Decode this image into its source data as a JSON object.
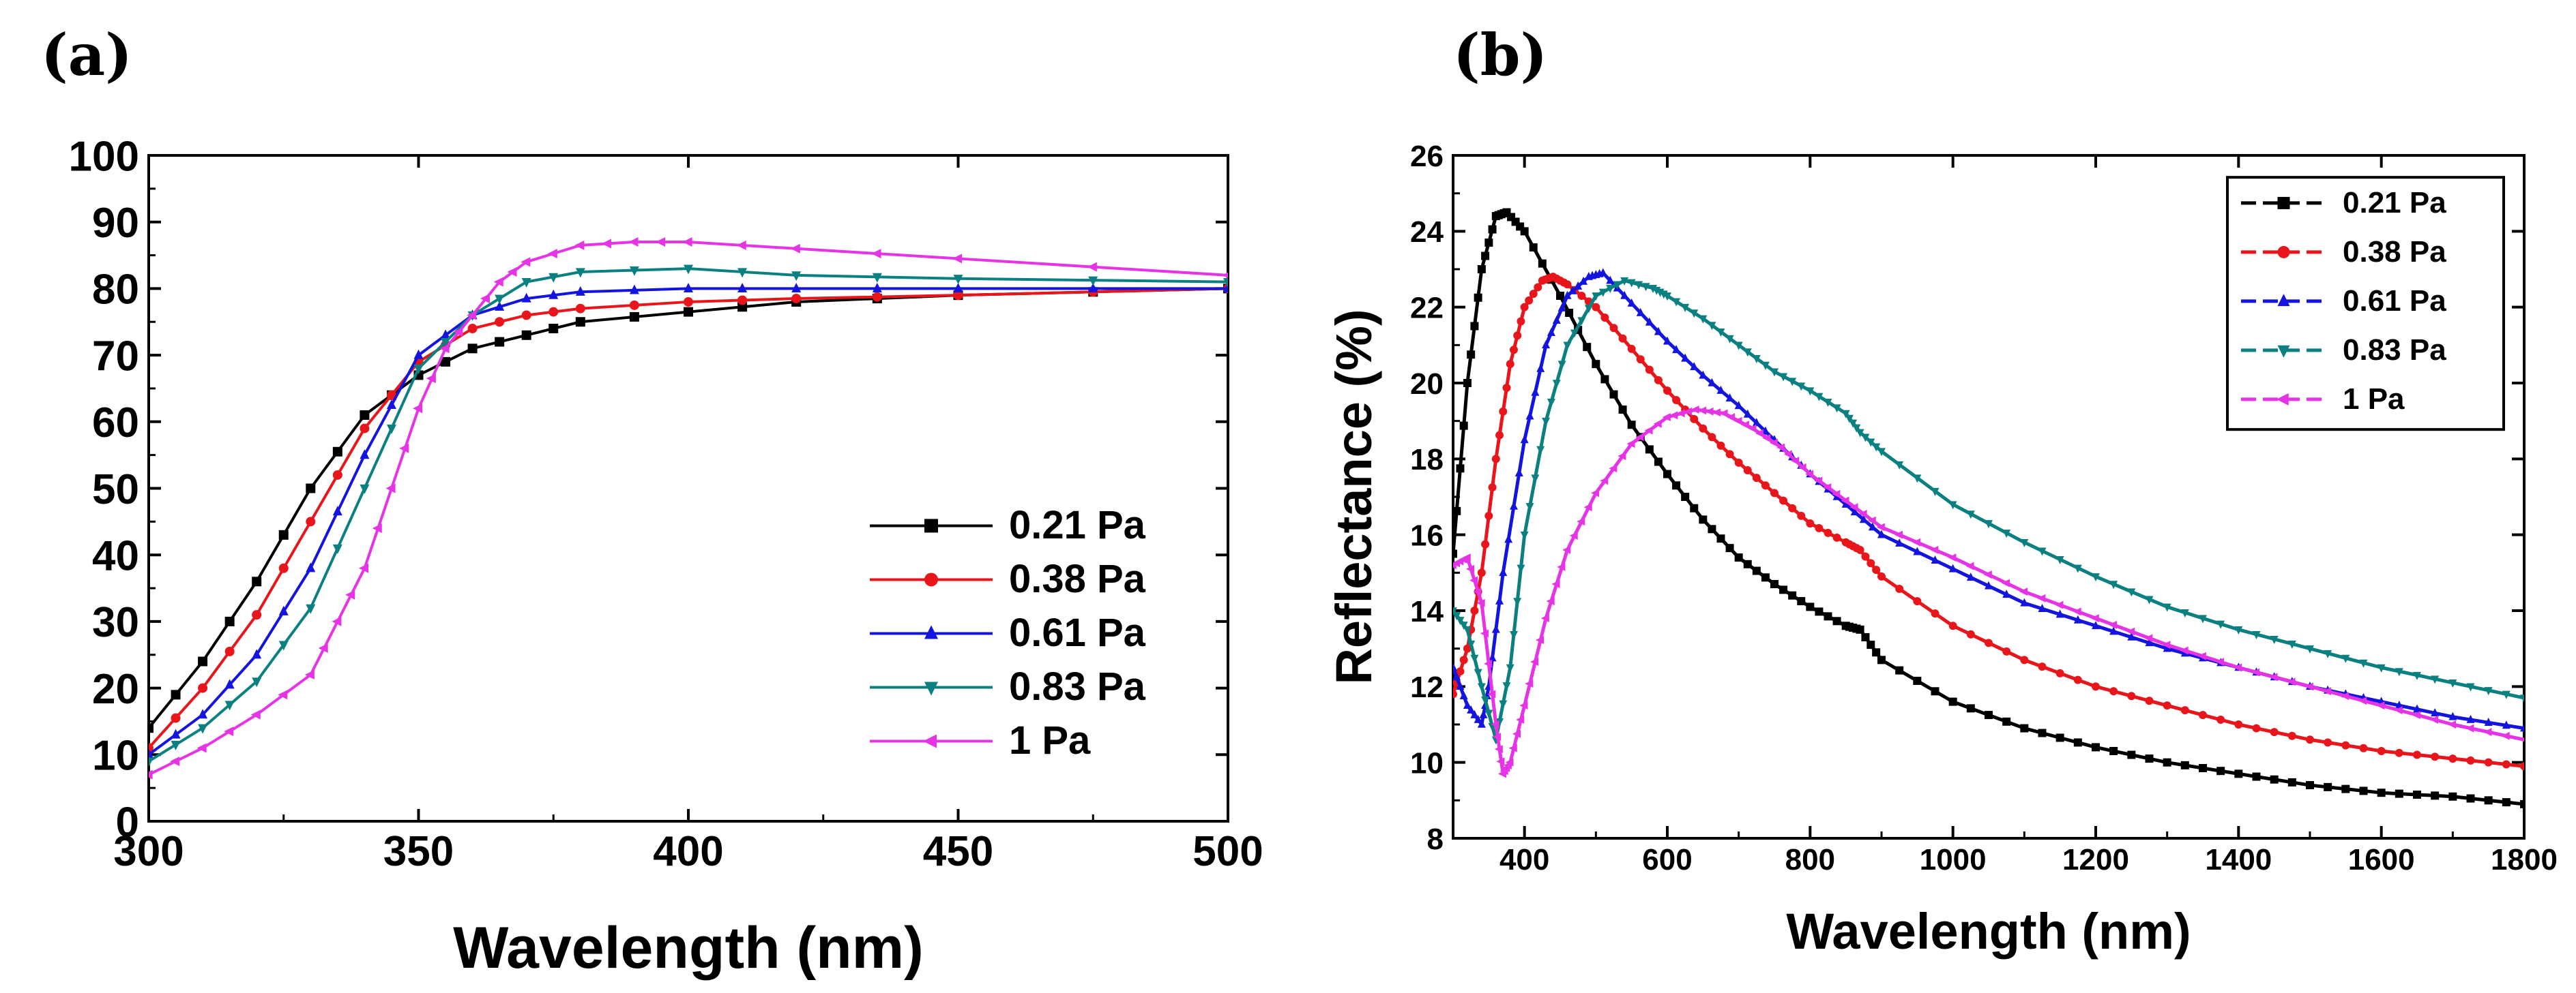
{
  "chart_data": [
    {
      "panel": "(a)",
      "type": "line",
      "title": "",
      "xlabel": "Wavelength (nm)",
      "ylabel": "",
      "xlim": [
        300,
        500
      ],
      "ylim": [
        0,
        100
      ],
      "xticks": [
        300,
        350,
        400,
        450,
        500
      ],
      "yticks": [
        0,
        10,
        20,
        30,
        40,
        50,
        60,
        70,
        80,
        90,
        100
      ],
      "legend_position": "lower-right",
      "series": [
        {
          "name": "0.21 Pa",
          "color": "#000000",
          "marker": "square",
          "x": [
            300,
            310,
            320,
            330,
            340,
            350,
            360,
            370,
            380,
            400,
            420,
            450,
            500
          ],
          "y": [
            14,
            24,
            36,
            50,
            61,
            67,
            71,
            73,
            75,
            76.5,
            78,
            79,
            80
          ]
        },
        {
          "name": "0.38 Pa",
          "color": "#e8161a",
          "marker": "circle",
          "x": [
            300,
            310,
            320,
            330,
            340,
            350,
            360,
            370,
            380,
            400,
            420,
            450,
            500
          ],
          "y": [
            11,
            20,
            31,
            45,
            59,
            69,
            74,
            76,
            77,
            78,
            78.5,
            79,
            80
          ]
        },
        {
          "name": "0.61 Pa",
          "color": "#1414e0",
          "marker": "triangle-up",
          "x": [
            300,
            310,
            320,
            330,
            340,
            350,
            360,
            370,
            380,
            400,
            420,
            450,
            500
          ],
          "y": [
            10,
            16,
            25,
            38,
            55,
            70,
            76,
            78.5,
            79.5,
            80,
            80,
            80,
            80
          ]
        },
        {
          "name": "0.83 Pa",
          "color": "#0a8080",
          "marker": "triangle-down",
          "x": [
            300,
            310,
            320,
            330,
            340,
            350,
            360,
            370,
            380,
            400,
            420,
            450,
            500
          ],
          "y": [
            9,
            14,
            21,
            32,
            50,
            68,
            76,
            81,
            82.5,
            83,
            82,
            81.5,
            81
          ]
        },
        {
          "name": "1      Pa",
          "color": "#e533e5",
          "marker": "triangle-left",
          "x": [
            300,
            310,
            320,
            330,
            335,
            340,
            345,
            350,
            355,
            360,
            365,
            370,
            380,
            390,
            400,
            420,
            450,
            500
          ],
          "y": [
            7,
            11,
            16,
            22,
            30,
            38,
            50,
            62,
            71,
            76,
            81,
            84,
            86.5,
            87,
            87,
            86,
            84.5,
            82
          ]
        }
      ]
    },
    {
      "panel": "(b)",
      "type": "line",
      "title": "",
      "xlabel": "Wavelength (nm)",
      "ylabel": "Reflectance (%)",
      "xlim": [
        300,
        1800
      ],
      "ylim": [
        8,
        26
      ],
      "xticks": [
        400,
        600,
        800,
        1000,
        1200,
        1400,
        1600,
        1800
      ],
      "yticks": [
        8,
        10,
        12,
        14,
        16,
        18,
        20,
        22,
        24,
        26
      ],
      "legend_position": "top-right",
      "series": [
        {
          "name": "0.21 Pa",
          "color": "#000000",
          "marker": "square",
          "x": [
            300,
            320,
            340,
            360,
            375,
            400,
            450,
            500,
            550,
            600,
            650,
            700,
            750,
            800,
            850,
            870,
            900,
            1000,
            1100,
            1200,
            1300,
            1400,
            1500,
            1600,
            1700,
            1800
          ],
          "y": [
            15.5,
            20,
            23,
            24.4,
            24.5,
            24,
            22.3,
            20.5,
            18.9,
            17.6,
            16.4,
            15.4,
            14.7,
            14.1,
            13.6,
            13.5,
            12.7,
            11.6,
            10.9,
            10.4,
            10,
            9.7,
            9.4,
            9.2,
            9.1,
            8.9
          ]
        },
        {
          "name": "0.38 Pa",
          "color": "#e8161a",
          "marker": "circle",
          "x": [
            300,
            320,
            340,
            360,
            380,
            400,
            425,
            440,
            460,
            500,
            550,
            600,
            650,
            700,
            750,
            800,
            850,
            870,
            900,
            1000,
            1100,
            1200,
            1300,
            1400,
            1500,
            1600,
            1700,
            1800
          ],
          "y": [
            11.8,
            13,
            15,
            18,
            20.5,
            22,
            22.7,
            22.8,
            22.6,
            22,
            20.9,
            19.8,
            18.8,
            17.9,
            17.1,
            16.3,
            15.8,
            15.6,
            14.9,
            13.6,
            12.7,
            12,
            11.5,
            11,
            10.6,
            10.3,
            10.1,
            9.9
          ]
        },
        {
          "name": "0.61 Pa",
          "color": "#1414e0",
          "marker": "triangle-up",
          "x": [
            300,
            320,
            340,
            350,
            370,
            400,
            430,
            460,
            490,
            510,
            550,
            600,
            650,
            700,
            750,
            800,
            850,
            900,
            1000,
            1100,
            1200,
            1300,
            1400,
            1500,
            1600,
            1700,
            1800
          ],
          "y": [
            12.5,
            11.5,
            11,
            12,
            15,
            18.5,
            21,
            22.3,
            22.8,
            22.9,
            22.1,
            21.1,
            20.2,
            19.4,
            18.5,
            17.6,
            16.8,
            16,
            15.1,
            14.2,
            13.6,
            13,
            12.5,
            12,
            11.6,
            11.2,
            10.9
          ]
        },
        {
          "name": "0.83 Pa",
          "color": "#0a8080",
          "marker": "triangle-down",
          "x": [
            300,
            320,
            340,
            360,
            380,
            400,
            430,
            460,
            500,
            540,
            580,
            600,
            650,
            700,
            750,
            800,
            850,
            870,
            900,
            1000,
            1100,
            1200,
            1300,
            1400,
            1500,
            1600,
            1700,
            1800
          ],
          "y": [
            14,
            13.5,
            12,
            10.6,
            12.5,
            16,
            19,
            21,
            22.3,
            22.7,
            22.5,
            22.3,
            21.7,
            21,
            20.3,
            19.8,
            19.2,
            18.7,
            18.2,
            16.8,
            15.8,
            14.9,
            14.1,
            13.5,
            13,
            12.5,
            12.1,
            11.7
          ]
        },
        {
          "name": "1      Pa",
          "color": "#e533e5",
          "marker": "triangle-left",
          "x": [
            300,
            320,
            340,
            360,
            370,
            380,
            400,
            430,
            460,
            500,
            550,
            600,
            640,
            680,
            720,
            760,
            800,
            850,
            900,
            1000,
            1100,
            1200,
            1300,
            1400,
            1500,
            1600,
            1700,
            1800
          ],
          "y": [
            15.2,
            15.4,
            14.2,
            11,
            9.7,
            10,
            11.5,
            13.8,
            15.6,
            17.1,
            18.4,
            19.1,
            19.3,
            19.2,
            18.8,
            18.3,
            17.6,
            16.9,
            16.2,
            15.4,
            14.5,
            13.8,
            13.1,
            12.5,
            12,
            11.5,
            11,
            10.6
          ]
        }
      ]
    }
  ]
}
